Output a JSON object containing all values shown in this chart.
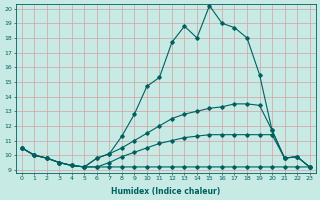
{
  "title": "",
  "xlabel": "Humidex (Indice chaleur)",
  "ylabel": "",
  "bg_color": "#c8eae4",
  "grid_color": "#d4a0a0",
  "line_color": "#006060",
  "xlim": [
    -0.5,
    23.5
  ],
  "ylim": [
    9,
    20
  ],
  "yticks": [
    9,
    10,
    11,
    12,
    13,
    14,
    15,
    16,
    17,
    18,
    19,
    20
  ],
  "xticks": [
    0,
    1,
    2,
    3,
    4,
    5,
    6,
    7,
    8,
    9,
    10,
    11,
    12,
    13,
    14,
    15,
    16,
    17,
    18,
    19,
    20,
    21,
    22,
    23
  ],
  "series": [
    [
      10.5,
      10.0,
      9.8,
      9.5,
      9.3,
      9.2,
      9.8,
      10.1,
      11.3,
      12.8,
      14.7,
      15.3,
      17.7,
      18.8,
      18.0,
      20.2,
      19.0,
      18.7,
      18.0,
      15.5,
      11.7,
      9.8,
      9.9,
      9.2
    ],
    [
      10.5,
      10.0,
      9.8,
      9.5,
      9.3,
      9.2,
      9.8,
      10.1,
      10.5,
      11.0,
      11.5,
      12.0,
      12.5,
      12.8,
      13.0,
      13.2,
      13.3,
      13.5,
      13.5,
      13.4,
      11.7,
      9.8,
      9.9,
      9.2
    ],
    [
      10.5,
      10.0,
      9.8,
      9.5,
      9.3,
      9.2,
      9.2,
      9.5,
      9.9,
      10.2,
      10.5,
      10.8,
      11.0,
      11.2,
      11.3,
      11.4,
      11.4,
      11.4,
      11.4,
      11.4,
      11.4,
      9.8,
      9.9,
      9.2
    ],
    [
      10.5,
      10.0,
      9.8,
      9.5,
      9.3,
      9.2,
      9.2,
      9.2,
      9.2,
      9.2,
      9.2,
      9.2,
      9.2,
      9.2,
      9.2,
      9.2,
      9.2,
      9.2,
      9.2,
      9.2,
      9.2,
      9.2,
      9.2,
      9.2
    ]
  ],
  "figsize": [
    3.2,
    2.0
  ],
  "dpi": 100
}
